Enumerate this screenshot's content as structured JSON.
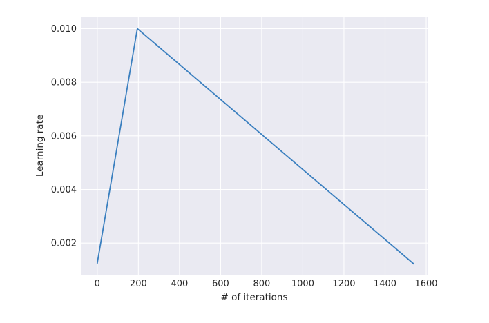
{
  "chart_data": {
    "type": "line",
    "xlabel": "# of iterations",
    "ylabel": "Learning rate",
    "xlim": [
      -80,
      1610
    ],
    "ylim": [
      0.00082,
      0.01045
    ],
    "xticks": [
      0,
      200,
      400,
      600,
      800,
      1000,
      1200,
      1400,
      1600
    ],
    "xtick_labels": [
      "0",
      "200",
      "400",
      "600",
      "800",
      "1000",
      "1200",
      "1400",
      "1600"
    ],
    "yticks": [
      0.002,
      0.004,
      0.006,
      0.008,
      0.01
    ],
    "ytick_labels": [
      "0.002",
      "0.004",
      "0.006",
      "0.008",
      "0.010"
    ],
    "grid": true,
    "legend": false,
    "colors": {
      "background": "#eaeaf2",
      "grid": "#ffffff",
      "line": "#3a7fbf",
      "text": "#262626"
    },
    "series": [
      {
        "x": [
          0,
          195,
          1540
        ],
        "y": [
          0.00125,
          0.01,
          0.00122
        ]
      }
    ]
  }
}
